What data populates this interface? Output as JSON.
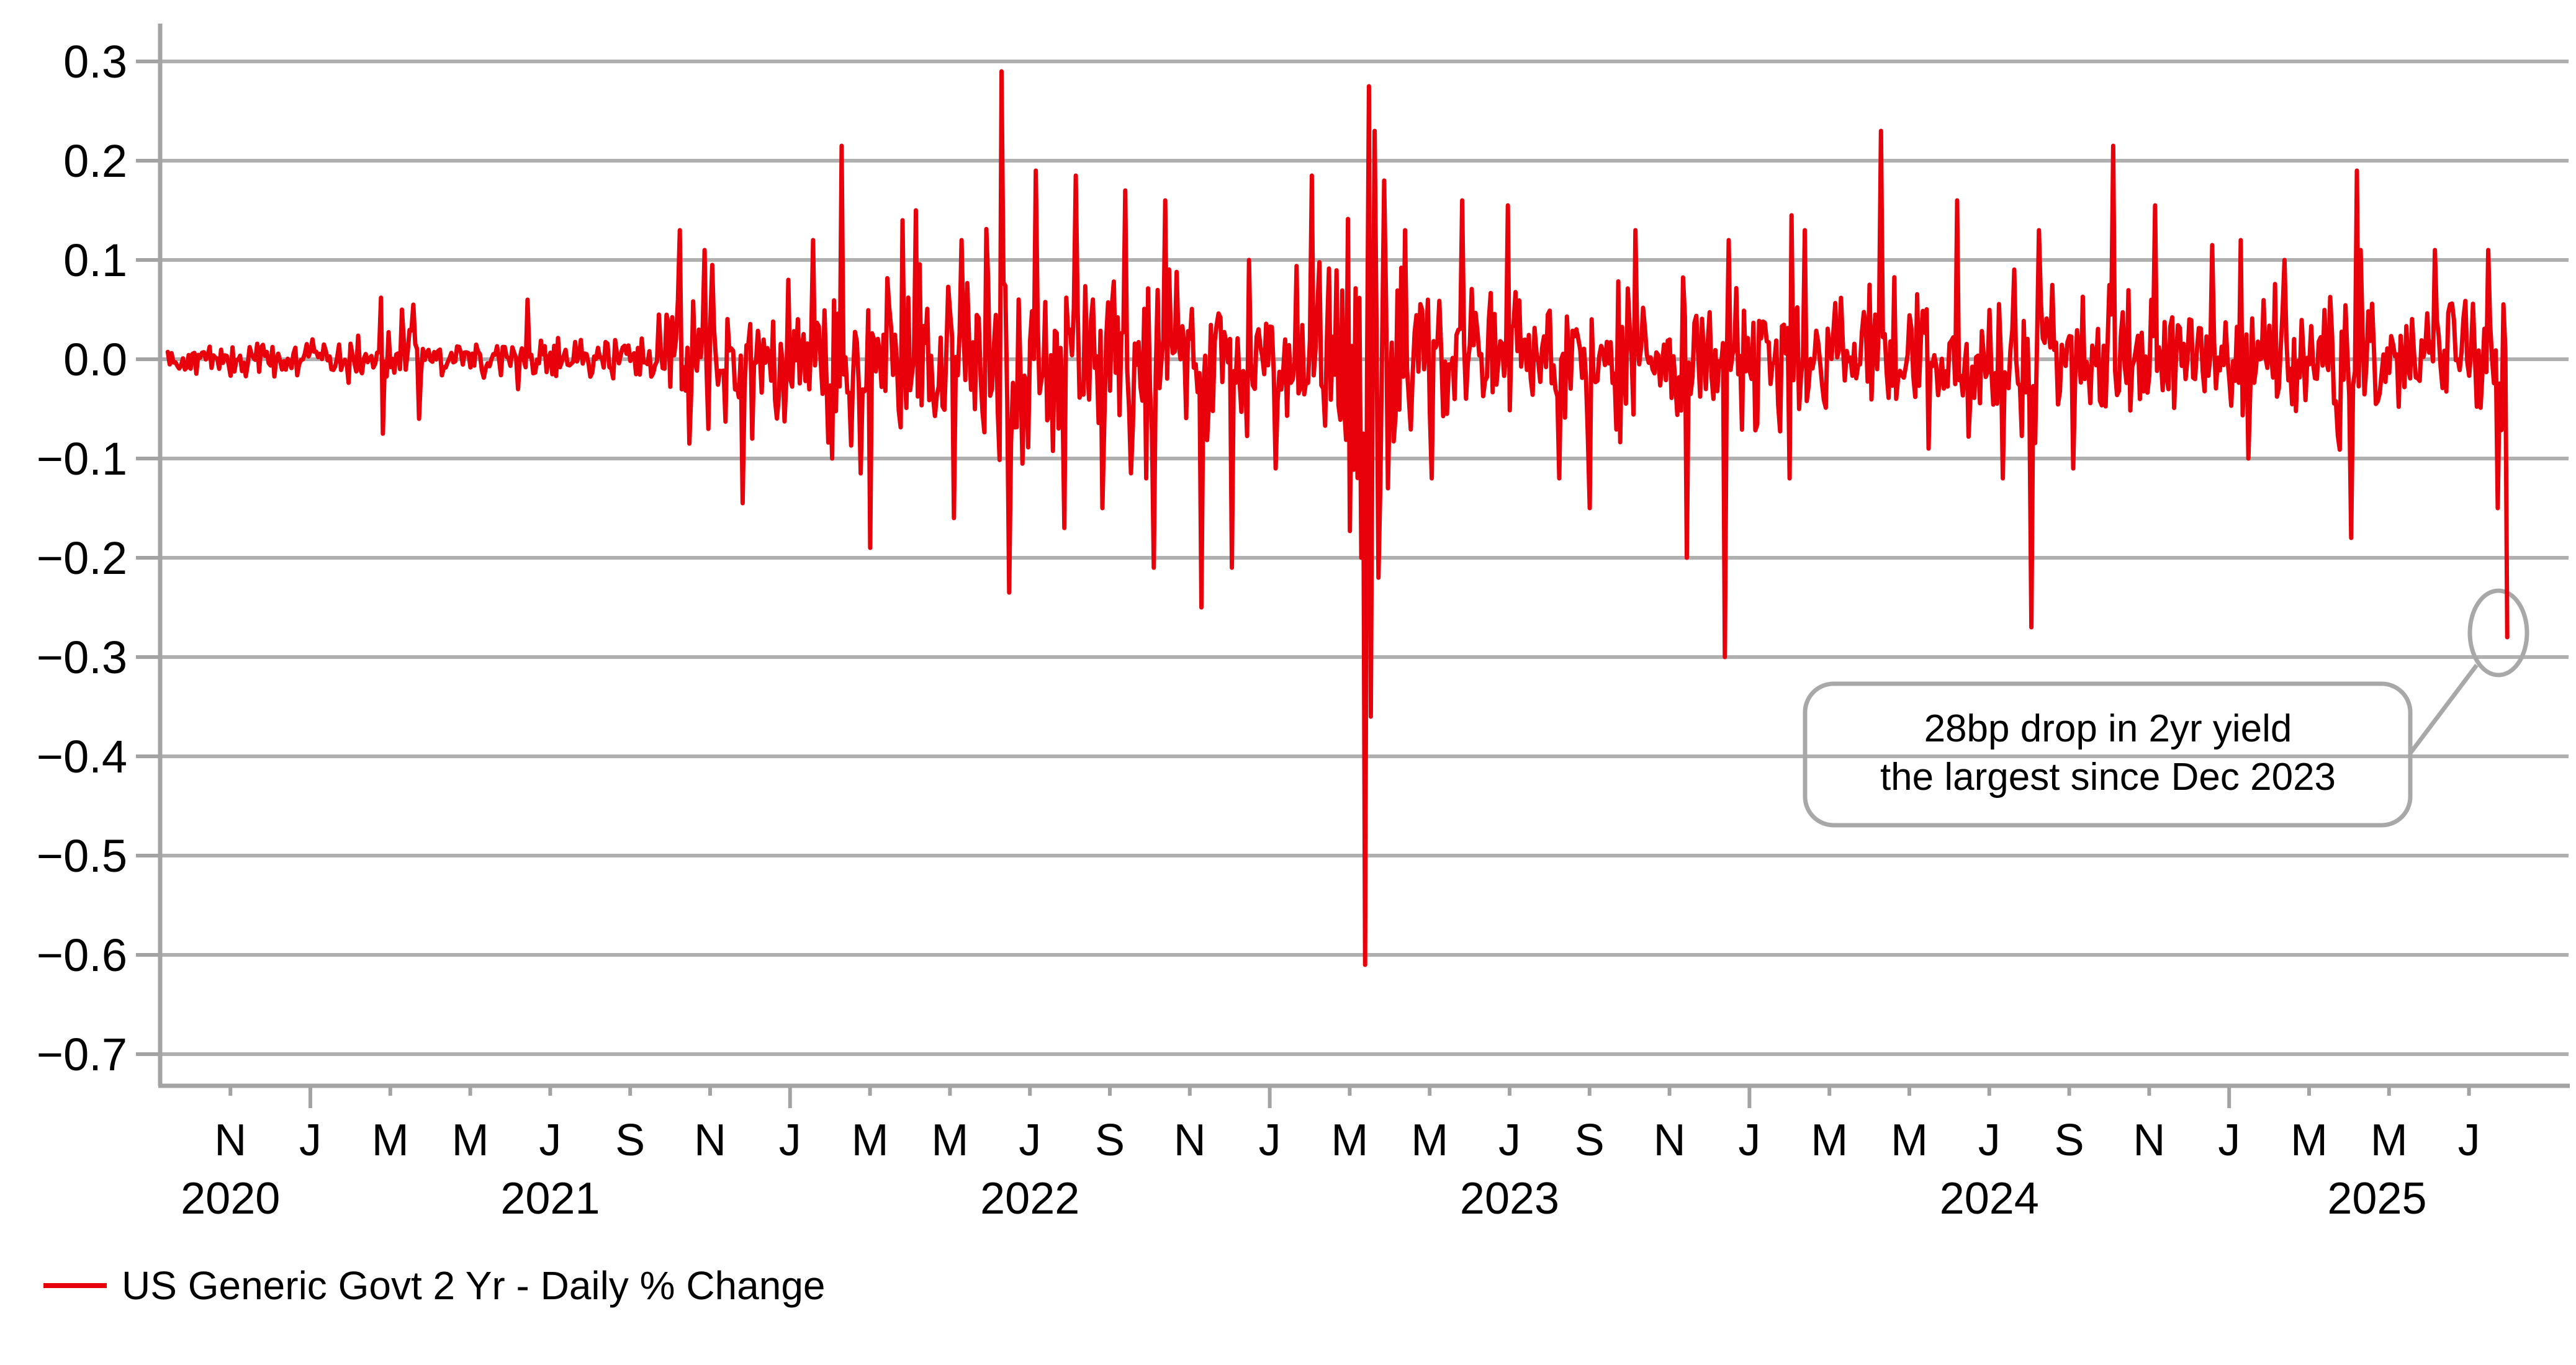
{
  "axes": {
    "grid_color": "#b0b0b0",
    "spine_color": "#a3a3a3",
    "annotation_stroke": "#a8a8a8",
    "text_color": "#000000"
  },
  "legend": {
    "label": "US Generic Govt 2 Yr - Daily % Change",
    "swatch_color": "#e8000a"
  },
  "annotation": {
    "line1": "28bp drop in 2yr yield",
    "line2": "the largest since Dec 2023",
    "highlighted_value": -0.28
  },
  "chart_data": {
    "type": "line",
    "title": "",
    "xlabel": "",
    "ylabel": "",
    "series_name": "US Generic Govt 2 Yr - Daily % Change",
    "color": "#e8000a",
    "grid": "horizontal",
    "legend_position": "bottom-left",
    "ylim": [
      -0.75,
      0.34
    ],
    "yticks": [
      0.3,
      0.2,
      0.1,
      0.0,
      -0.1,
      -0.2,
      -0.3,
      -0.4,
      -0.5,
      -0.6,
      -0.7
    ],
    "x_start": "2020-09-14",
    "x_end": "2025-08-01",
    "points_per_month": 21,
    "noise_seed": 42,
    "x_month_ticks": [
      {
        "label": "N",
        "date": "2020-11-01"
      },
      {
        "label": "J",
        "date": "2021-01-01"
      },
      {
        "label": "M",
        "date": "2021-03-01"
      },
      {
        "label": "M",
        "date": "2021-05-01"
      },
      {
        "label": "J",
        "date": "2021-07-01"
      },
      {
        "label": "S",
        "date": "2021-09-01"
      },
      {
        "label": "N",
        "date": "2021-11-01"
      },
      {
        "label": "J",
        "date": "2022-01-01"
      },
      {
        "label": "M",
        "date": "2022-03-01"
      },
      {
        "label": "M",
        "date": "2022-05-01"
      },
      {
        "label": "J",
        "date": "2022-07-01"
      },
      {
        "label": "S",
        "date": "2022-09-01"
      },
      {
        "label": "N",
        "date": "2022-11-01"
      },
      {
        "label": "J",
        "date": "2023-01-01"
      },
      {
        "label": "M",
        "date": "2023-03-01"
      },
      {
        "label": "M",
        "date": "2023-05-01"
      },
      {
        "label": "J",
        "date": "2023-07-01"
      },
      {
        "label": "S",
        "date": "2023-09-01"
      },
      {
        "label": "N",
        "date": "2023-11-01"
      },
      {
        "label": "J",
        "date": "2024-01-01"
      },
      {
        "label": "M",
        "date": "2024-03-01"
      },
      {
        "label": "M",
        "date": "2024-05-01"
      },
      {
        "label": "J",
        "date": "2024-07-01"
      },
      {
        "label": "S",
        "date": "2024-09-01"
      },
      {
        "label": "N",
        "date": "2024-11-01"
      },
      {
        "label": "J",
        "date": "2025-01-01"
      },
      {
        "label": "M",
        "date": "2025-03-01"
      },
      {
        "label": "M",
        "date": "2025-05-01"
      },
      {
        "label": "J",
        "date": "2025-07-01"
      }
    ],
    "year_labels": [
      {
        "label": "2020",
        "anchor": "2020-11-01"
      },
      {
        "label": "2021",
        "anchor": "2021-07-01"
      },
      {
        "label": "2022",
        "anchor": "2022-07-01"
      },
      {
        "label": "2023",
        "anchor": "2023-07-01"
      },
      {
        "label": "2024",
        "anchor": "2024-07-01"
      },
      {
        "label": "2025",
        "anchor": "2025-04-22"
      }
    ],
    "monthly_volatility": [
      {
        "month": "2020-09",
        "sigma": 0.007
      },
      {
        "month": "2020-10",
        "sigma": 0.008
      },
      {
        "month": "2020-11",
        "sigma": 0.009
      },
      {
        "month": "2020-12",
        "sigma": 0.007
      },
      {
        "month": "2021-01",
        "sigma": 0.009
      },
      {
        "month": "2021-02",
        "sigma": 0.012
      },
      {
        "month": "2021-03",
        "sigma": 0.014
      },
      {
        "month": "2021-04",
        "sigma": 0.009
      },
      {
        "month": "2021-05",
        "sigma": 0.008
      },
      {
        "month": "2021-06",
        "sigma": 0.012
      },
      {
        "month": "2021-07",
        "sigma": 0.011
      },
      {
        "month": "2021-08",
        "sigma": 0.009
      },
      {
        "month": "2021-09",
        "sigma": 0.012
      },
      {
        "month": "2021-10",
        "sigma": 0.026
      },
      {
        "month": "2021-11",
        "sigma": 0.028
      },
      {
        "month": "2021-12",
        "sigma": 0.026
      },
      {
        "month": "2022-01",
        "sigma": 0.034
      },
      {
        "month": "2022-02",
        "sigma": 0.046
      },
      {
        "month": "2022-03",
        "sigma": 0.044
      },
      {
        "month": "2022-04",
        "sigma": 0.04
      },
      {
        "month": "2022-05",
        "sigma": 0.046
      },
      {
        "month": "2022-06",
        "sigma": 0.052
      },
      {
        "month": "2022-07",
        "sigma": 0.048
      },
      {
        "month": "2022-08",
        "sigma": 0.04
      },
      {
        "month": "2022-09",
        "sigma": 0.044
      },
      {
        "month": "2022-10",
        "sigma": 0.046
      },
      {
        "month": "2022-11",
        "sigma": 0.044
      },
      {
        "month": "2022-12",
        "sigma": 0.038
      },
      {
        "month": "2023-01",
        "sigma": 0.036
      },
      {
        "month": "2023-02",
        "sigma": 0.038
      },
      {
        "month": "2023-03",
        "sigma": 0.08
      },
      {
        "month": "2023-04",
        "sigma": 0.04
      },
      {
        "month": "2023-05",
        "sigma": 0.038
      },
      {
        "month": "2023-06",
        "sigma": 0.036
      },
      {
        "month": "2023-07",
        "sigma": 0.034
      },
      {
        "month": "2023-08",
        "sigma": 0.034
      },
      {
        "month": "2023-09",
        "sigma": 0.034
      },
      {
        "month": "2023-10",
        "sigma": 0.038
      },
      {
        "month": "2023-11",
        "sigma": 0.036
      },
      {
        "month": "2023-12",
        "sigma": 0.04
      },
      {
        "month": "2024-01",
        "sigma": 0.034
      },
      {
        "month": "2024-02",
        "sigma": 0.036
      },
      {
        "month": "2024-03",
        "sigma": 0.032
      },
      {
        "month": "2024-04",
        "sigma": 0.036
      },
      {
        "month": "2024-05",
        "sigma": 0.032
      },
      {
        "month": "2024-06",
        "sigma": 0.034
      },
      {
        "month": "2024-07",
        "sigma": 0.032
      },
      {
        "month": "2024-08",
        "sigma": 0.04
      },
      {
        "month": "2024-09",
        "sigma": 0.036
      },
      {
        "month": "2024-10",
        "sigma": 0.034
      },
      {
        "month": "2024-11",
        "sigma": 0.032
      },
      {
        "month": "2024-12",
        "sigma": 0.032
      },
      {
        "month": "2025-01",
        "sigma": 0.03
      },
      {
        "month": "2025-02",
        "sigma": 0.03
      },
      {
        "month": "2025-03",
        "sigma": 0.028
      },
      {
        "month": "2025-04",
        "sigma": 0.042
      },
      {
        "month": "2025-05",
        "sigma": 0.028
      },
      {
        "month": "2025-06",
        "sigma": 0.026
      },
      {
        "month": "2025-07",
        "sigma": 0.028
      }
    ],
    "key_daily_moves": [
      {
        "date": "2021-02-24",
        "value": 0.062
      },
      {
        "date": "2021-02-26",
        "value": -0.075
      },
      {
        "date": "2021-03-09",
        "value": 0.05
      },
      {
        "date": "2021-03-18",
        "value": 0.055
      },
      {
        "date": "2021-03-23",
        "value": -0.06
      },
      {
        "date": "2021-06-14",
        "value": 0.06
      },
      {
        "date": "2021-09-22",
        "value": 0.045
      },
      {
        "date": "2021-10-08",
        "value": 0.13
      },
      {
        "date": "2021-10-15",
        "value": -0.085
      },
      {
        "date": "2021-10-27",
        "value": 0.11
      },
      {
        "date": "2021-11-03",
        "value": 0.095
      },
      {
        "date": "2021-11-26",
        "value": -0.145
      },
      {
        "date": "2021-12-03",
        "value": -0.08
      },
      {
        "date": "2021-12-29",
        "value": 0.08
      },
      {
        "date": "2022-01-18",
        "value": 0.12
      },
      {
        "date": "2022-02-03",
        "value": -0.1
      },
      {
        "date": "2022-02-10",
        "value": 0.215
      },
      {
        "date": "2022-02-24",
        "value": -0.115
      },
      {
        "date": "2022-03-01",
        "value": -0.19
      },
      {
        "date": "2022-03-25",
        "value": 0.14
      },
      {
        "date": "2022-04-05",
        "value": 0.15
      },
      {
        "date": "2022-05-04",
        "value": -0.16
      },
      {
        "date": "2022-05-09",
        "value": 0.12
      },
      {
        "date": "2022-06-10",
        "value": 0.29
      },
      {
        "date": "2022-06-16",
        "value": -0.235
      },
      {
        "date": "2022-07-05",
        "value": 0.19
      },
      {
        "date": "2022-07-27",
        "value": -0.17
      },
      {
        "date": "2022-08-05",
        "value": 0.185
      },
      {
        "date": "2022-08-26",
        "value": -0.15
      },
      {
        "date": "2022-09-13",
        "value": 0.17
      },
      {
        "date": "2022-09-28",
        "value": -0.12
      },
      {
        "date": "2022-10-04",
        "value": -0.21
      },
      {
        "date": "2022-10-13",
        "value": 0.16
      },
      {
        "date": "2022-11-10",
        "value": -0.25
      },
      {
        "date": "2022-12-02",
        "value": -0.21
      },
      {
        "date": "2022-12-15",
        "value": 0.1
      },
      {
        "date": "2023-01-06",
        "value": -0.11
      },
      {
        "date": "2023-02-03",
        "value": 0.185
      },
      {
        "date": "2023-03-09",
        "value": -0.2
      },
      {
        "date": "2023-03-13",
        "value": -0.61
      },
      {
        "date": "2023-03-15",
        "value": 0.275
      },
      {
        "date": "2023-03-17",
        "value": -0.36
      },
      {
        "date": "2023-03-20",
        "value": 0.23
      },
      {
        "date": "2023-03-22",
        "value": -0.22
      },
      {
        "date": "2023-03-27",
        "value": 0.18
      },
      {
        "date": "2023-03-30",
        "value": -0.13
      },
      {
        "date": "2023-04-12",
        "value": 0.13
      },
      {
        "date": "2023-05-03",
        "value": -0.12
      },
      {
        "date": "2023-05-25",
        "value": 0.16
      },
      {
        "date": "2023-06-29",
        "value": 0.155
      },
      {
        "date": "2023-08-08",
        "value": -0.12
      },
      {
        "date": "2023-09-01",
        "value": -0.15
      },
      {
        "date": "2023-10-06",
        "value": 0.13
      },
      {
        "date": "2023-11-14",
        "value": -0.2
      },
      {
        "date": "2023-12-13",
        "value": -0.3
      },
      {
        "date": "2023-12-15",
        "value": 0.12
      },
      {
        "date": "2024-01-31",
        "value": -0.12
      },
      {
        "date": "2024-02-02",
        "value": 0.145
      },
      {
        "date": "2024-02-13",
        "value": 0.13
      },
      {
        "date": "2024-04-10",
        "value": 0.23
      },
      {
        "date": "2024-05-15",
        "value": -0.09
      },
      {
        "date": "2024-06-07",
        "value": 0.16
      },
      {
        "date": "2024-07-11",
        "value": -0.12
      },
      {
        "date": "2024-08-02",
        "value": -0.27
      },
      {
        "date": "2024-08-08",
        "value": 0.13
      },
      {
        "date": "2024-09-04",
        "value": -0.11
      },
      {
        "date": "2024-10-04",
        "value": 0.215
      },
      {
        "date": "2024-11-06",
        "value": 0.155
      },
      {
        "date": "2024-12-18",
        "value": 0.115
      },
      {
        "date": "2025-01-10",
        "value": 0.12
      },
      {
        "date": "2025-01-15",
        "value": -0.1
      },
      {
        "date": "2025-02-12",
        "value": 0.1
      },
      {
        "date": "2025-04-03",
        "value": -0.18
      },
      {
        "date": "2025-04-07",
        "value": 0.19
      },
      {
        "date": "2025-04-09",
        "value": 0.11
      },
      {
        "date": "2025-06-06",
        "value": 0.11
      },
      {
        "date": "2025-07-15",
        "value": 0.11
      },
      {
        "date": "2025-07-22",
        "value": -0.15
      },
      {
        "date": "2025-07-29",
        "value": 0.06
      },
      {
        "date": "2025-08-01",
        "value": -0.28
      }
    ]
  }
}
